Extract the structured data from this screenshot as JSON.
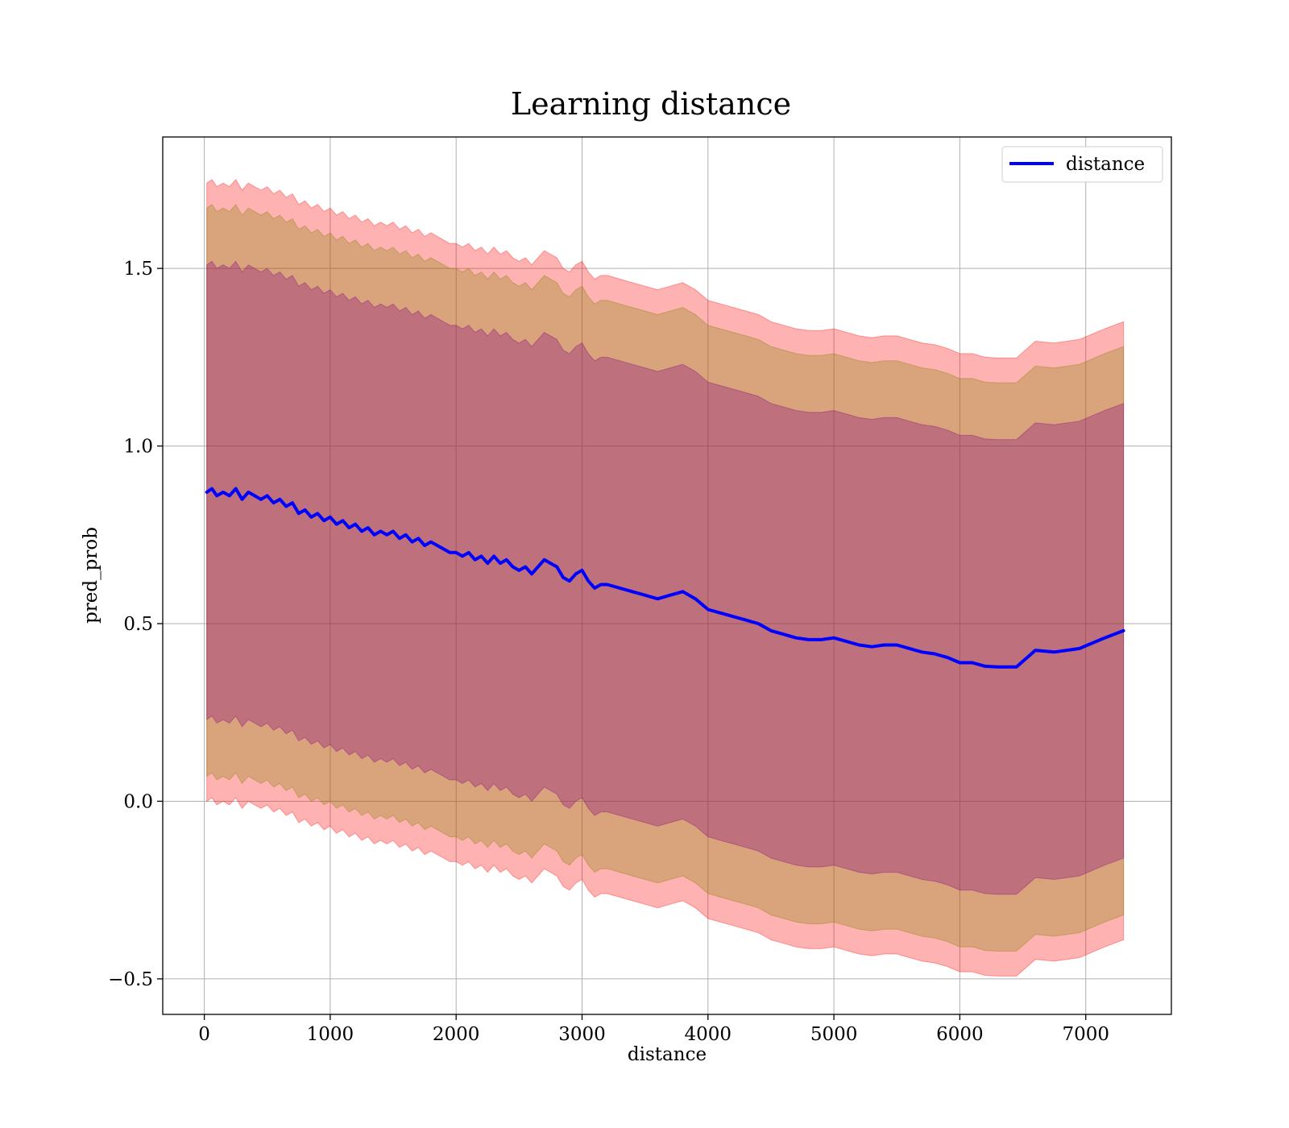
{
  "chart_data": {
    "type": "line",
    "title": "Learning distance",
    "xlabel": "distance",
    "ylabel": "pred_prob",
    "xlim": [
      -330,
      7680
    ],
    "ylim": [
      -0.6,
      1.87
    ],
    "xticks": [
      0,
      1000,
      2000,
      3000,
      4000,
      5000,
      6000,
      7000
    ],
    "yticks": [
      -0.5,
      0.0,
      0.5,
      1.0,
      1.5
    ],
    "ytick_labels": [
      "−0.5",
      "0.0",
      "0.5",
      "1.0",
      "1.5"
    ],
    "grid": true,
    "legend": {
      "position": "upper right",
      "entries": [
        "distance"
      ]
    },
    "colors": {
      "line": "#0000ff",
      "band_outer": "#ff0000",
      "band_middle": "#808000",
      "band_inner": "#800080",
      "grid": "#b0b0b0"
    },
    "series": [
      {
        "name": "distance",
        "x": [
          20,
          60,
          100,
          150,
          200,
          250,
          300,
          350,
          400,
          450,
          500,
          550,
          600,
          650,
          700,
          750,
          800,
          850,
          900,
          950,
          1000,
          1050,
          1100,
          1150,
          1200,
          1250,
          1300,
          1350,
          1400,
          1450,
          1500,
          1550,
          1600,
          1650,
          1700,
          1750,
          1800,
          1850,
          1900,
          1950,
          2000,
          2050,
          2100,
          2150,
          2200,
          2250,
          2300,
          2350,
          2400,
          2450,
          2500,
          2550,
          2600,
          2650,
          2700,
          2750,
          2800,
          2850,
          2900,
          2950,
          3000,
          3050,
          3100,
          3150,
          3200,
          3300,
          3400,
          3500,
          3600,
          3700,
          3800,
          3900,
          4000,
          4100,
          4200,
          4300,
          4400,
          4500,
          4600,
          4700,
          4800,
          4900,
          5000,
          5100,
          5200,
          5300,
          5400,
          5500,
          5600,
          5700,
          5800,
          5900,
          6000,
          6100,
          6200,
          6300,
          6400,
          6450,
          6600,
          6750,
          6950,
          7150,
          7300
        ],
        "y": [
          0.87,
          0.88,
          0.86,
          0.87,
          0.86,
          0.88,
          0.85,
          0.87,
          0.86,
          0.85,
          0.86,
          0.84,
          0.85,
          0.83,
          0.84,
          0.81,
          0.82,
          0.8,
          0.81,
          0.79,
          0.8,
          0.78,
          0.79,
          0.77,
          0.78,
          0.76,
          0.77,
          0.75,
          0.76,
          0.75,
          0.76,
          0.74,
          0.75,
          0.73,
          0.74,
          0.72,
          0.73,
          0.72,
          0.71,
          0.7,
          0.7,
          0.69,
          0.7,
          0.68,
          0.69,
          0.67,
          0.69,
          0.67,
          0.68,
          0.66,
          0.65,
          0.66,
          0.64,
          0.66,
          0.68,
          0.67,
          0.66,
          0.63,
          0.62,
          0.64,
          0.65,
          0.62,
          0.6,
          0.61,
          0.61,
          0.6,
          0.59,
          0.58,
          0.57,
          0.58,
          0.59,
          0.57,
          0.54,
          0.53,
          0.52,
          0.51,
          0.5,
          0.48,
          0.47,
          0.46,
          0.455,
          0.455,
          0.46,
          0.45,
          0.44,
          0.435,
          0.44,
          0.44,
          0.43,
          0.42,
          0.415,
          0.405,
          0.39,
          0.39,
          0.38,
          0.378,
          0.378,
          0.378,
          0.425,
          0.42,
          0.43,
          0.46,
          0.48
        ]
      }
    ],
    "bands": [
      {
        "name": "outer",
        "offset": 0.87
      },
      {
        "name": "middle",
        "offset": 0.8
      },
      {
        "name": "inner",
        "offset": 0.64
      }
    ]
  }
}
